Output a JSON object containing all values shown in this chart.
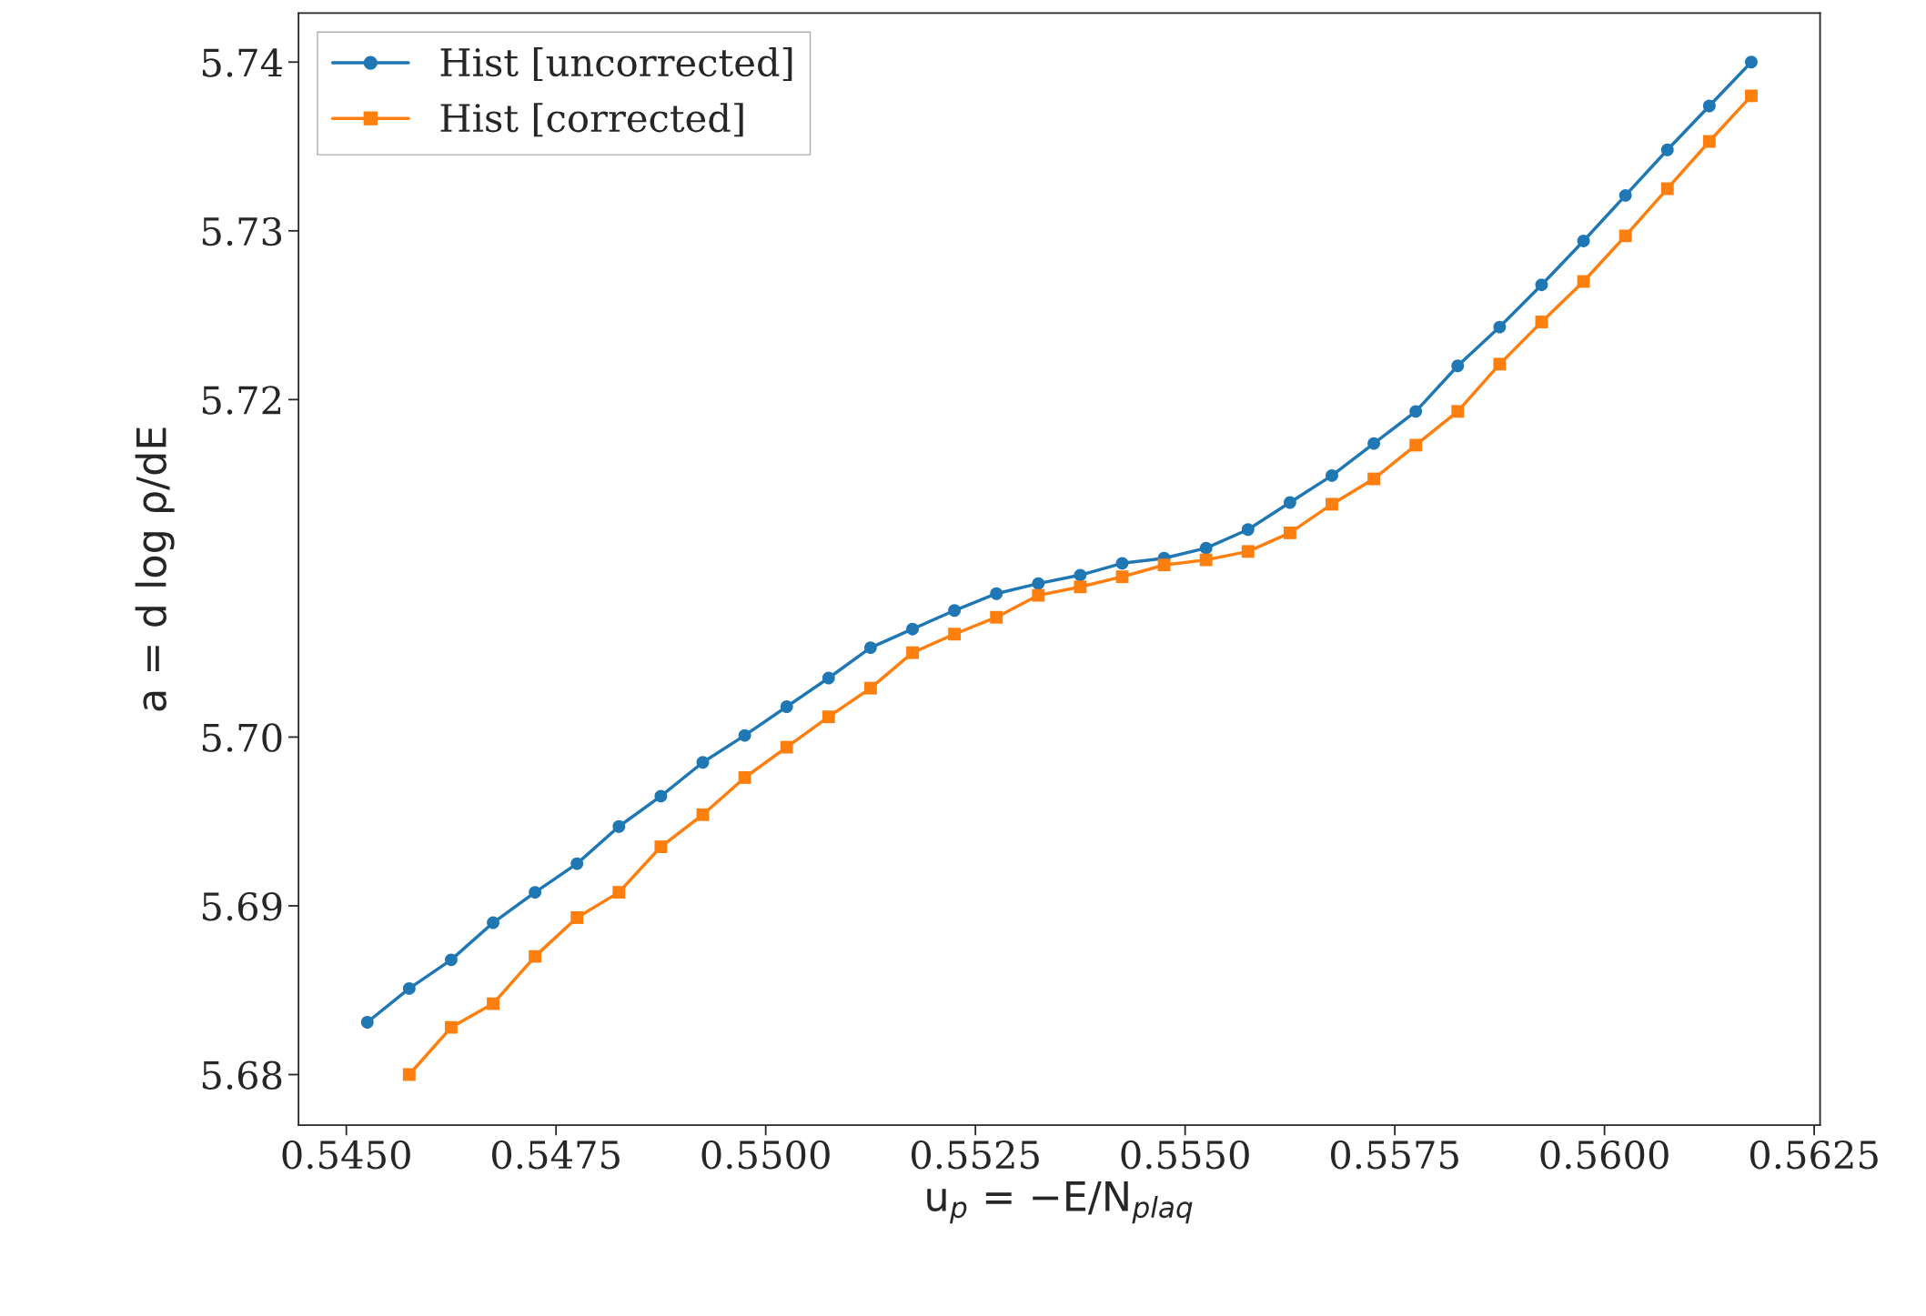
{
  "chart_data": {
    "type": "line",
    "xlabel": "u$_{p}$ = −E/N$_{plaq}$",
    "ylabel": "a = d log ρ/dE",
    "xlim": [
      0.54443,
      0.56257
    ],
    "ylim": [
      5.677,
      5.7429
    ],
    "xticks": [
      {
        "value": 0.545,
        "label": "0.5450"
      },
      {
        "value": 0.5475,
        "label": "0.5475"
      },
      {
        "value": 0.55,
        "label": "0.5500"
      },
      {
        "value": 0.5525,
        "label": "0.5525"
      },
      {
        "value": 0.555,
        "label": "0.5550"
      },
      {
        "value": 0.5575,
        "label": "0.5575"
      },
      {
        "value": 0.56,
        "label": "0.5600"
      },
      {
        "value": 0.5625,
        "label": "0.5625"
      }
    ],
    "yticks": [
      {
        "value": 5.68,
        "label": "5.68"
      },
      {
        "value": 5.69,
        "label": "5.69"
      },
      {
        "value": 5.7,
        "label": "5.70"
      },
      {
        "value": 5.72,
        "label": "5.72"
      },
      {
        "value": 5.73,
        "label": "5.73"
      },
      {
        "value": 5.74,
        "label": "5.74"
      }
    ],
    "legend": "top left",
    "grid": false,
    "line_style": "solid",
    "series": [
      {
        "name": "Hist [uncorrected]",
        "color": "#1f77b4",
        "marker": "circle",
        "x": [
          0.54525,
          0.54575,
          0.54625,
          0.54675,
          0.54725,
          0.54775,
          0.54825,
          0.54875,
          0.54925,
          0.54975,
          0.55025,
          0.55075,
          0.55125,
          0.55175,
          0.55225,
          0.55275,
          0.55325,
          0.55375,
          0.55425,
          0.55475,
          0.55525,
          0.55575,
          0.55625,
          0.55675,
          0.55725,
          0.55775,
          0.55825,
          0.55875,
          0.55925,
          0.55975,
          0.56025,
          0.56075,
          0.56125,
          0.56175
        ],
        "values": [
          5.6831,
          5.6851,
          5.6868,
          5.689,
          5.6908,
          5.6925,
          5.6947,
          5.6965,
          5.6985,
          5.7001,
          5.7018,
          5.7035,
          5.7053,
          5.7064,
          5.7075,
          5.7085,
          5.7091,
          5.7096,
          5.7103,
          5.7106,
          5.7112,
          5.7123,
          5.7139,
          5.7155,
          5.7174,
          5.7193,
          5.722,
          5.7243,
          5.7268,
          5.7294,
          5.7321,
          5.7348,
          5.7374,
          5.74
        ]
      },
      {
        "name": "Hist [corrected]",
        "color": "#ff7f0e",
        "marker": "square",
        "x": [
          0.54575,
          0.54625,
          0.54675,
          0.54725,
          0.54775,
          0.54825,
          0.54875,
          0.54925,
          0.54975,
          0.55025,
          0.55075,
          0.55125,
          0.55175,
          0.55225,
          0.55275,
          0.55325,
          0.55375,
          0.55425,
          0.55475,
          0.55525,
          0.55575,
          0.55625,
          0.55675,
          0.55725,
          0.55775,
          0.55825,
          0.55875,
          0.55925,
          0.55975,
          0.56025,
          0.56075,
          0.56125,
          0.56175
        ],
        "values": [
          5.68,
          5.6828,
          5.6842,
          5.687,
          5.6893,
          5.6908,
          5.6935,
          5.6954,
          5.6976,
          5.6994,
          5.7012,
          5.7029,
          5.705,
          5.7061,
          5.7071,
          5.7084,
          5.7089,
          5.7095,
          5.7102,
          5.7105,
          5.711,
          5.7121,
          5.7138,
          5.7153,
          5.7173,
          5.7193,
          5.7221,
          5.7246,
          5.727,
          5.7297,
          5.7325,
          5.7353,
          5.738
        ]
      }
    ]
  }
}
